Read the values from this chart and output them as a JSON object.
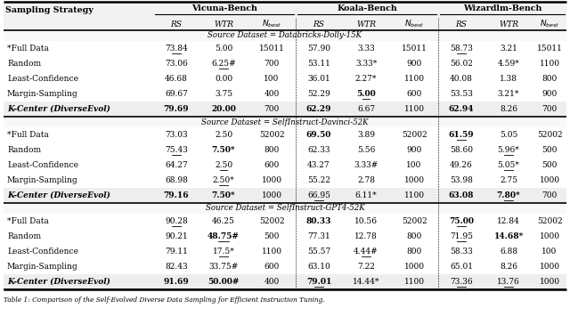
{
  "section_headers": [
    "Source Dataset = Databricks-Dolly-15K",
    "Source Dataset = SelfInstruct-Davinci-52K",
    "Source Dataset = SelfInstruct-GPT4-52K"
  ],
  "rows": [
    [
      [
        "*Full Data",
        "73.84",
        "5.00",
        "15011",
        "57.90",
        "3.33",
        "15011",
        "58.73",
        "3.21",
        "15011"
      ],
      [
        "Random",
        "73.06",
        "6.25#",
        "700",
        "53.11",
        "3.33*",
        "900",
        "56.02",
        "4.59*",
        "1100"
      ],
      [
        "Least-Confidence",
        "46.68",
        "0.00",
        "100",
        "36.01",
        "2.27*",
        "1100",
        "40.08",
        "1.38",
        "800"
      ],
      [
        "Margin-Sampling",
        "69.67",
        "3.75",
        "400",
        "52.29",
        "5.00",
        "600",
        "53.53",
        "3.21*",
        "900"
      ],
      [
        "K-Center (DiverseEvol)",
        "79.69",
        "20.00",
        "700",
        "62.29",
        "6.67",
        "1100",
        "62.94",
        "8.26",
        "700"
      ]
    ],
    [
      [
        "*Full Data",
        "73.03",
        "2.50",
        "52002",
        "69.50",
        "3.89",
        "52002",
        "61.59",
        "5.05",
        "52002"
      ],
      [
        "Random",
        "75.43",
        "7.50*",
        "800",
        "62.33",
        "5.56",
        "900",
        "58.60",
        "5.96*",
        "500"
      ],
      [
        "Least-Confidence",
        "64.27",
        "2.50",
        "600",
        "43.27",
        "3.33#",
        "100",
        "49.26",
        "5.05*",
        "500"
      ],
      [
        "Margin-Sampling",
        "68.98",
        "2.50*",
        "1000",
        "55.22",
        "2.78",
        "1000",
        "53.98",
        "2.75",
        "1000"
      ],
      [
        "K-Center (DiverseEvol)",
        "79.16",
        "7.50*",
        "1000",
        "66.95",
        "6.11*",
        "1100",
        "63.08",
        "7.80*",
        "700"
      ]
    ],
    [
      [
        "*Full Data",
        "90.28",
        "46.25",
        "52002",
        "80.33",
        "10.56",
        "52002",
        "75.00",
        "12.84",
        "52002"
      ],
      [
        "Random",
        "90.21",
        "48.75#",
        "500",
        "77.31",
        "12.78",
        "800",
        "71.95",
        "14.68*",
        "1000"
      ],
      [
        "Least-Confidence",
        "79.11",
        "17.5*",
        "1100",
        "55.57",
        "4.44#",
        "800",
        "58.33",
        "6.88",
        "100"
      ],
      [
        "Margin-Sampling",
        "82.43",
        "33.75#",
        "600",
        "63.10",
        "7.22",
        "1000",
        "65.01",
        "8.26",
        "1000"
      ],
      [
        "K-Center (DiverseEvol)",
        "91.69",
        "50.00#",
        "400",
        "79.01",
        "14.44*",
        "1100",
        "73.36",
        "13.76",
        "1000"
      ]
    ]
  ],
  "underline": {
    "0,0,1": true,
    "0,0,7": true,
    "0,1,2": true,
    "0,3,5": true,
    "1,0,7": true,
    "1,1,1": true,
    "1,1,8": true,
    "1,2,2": true,
    "1,2,8": true,
    "1,3,2": true,
    "1,4,4": true,
    "1,4,8": true,
    "2,0,1": true,
    "2,0,7": true,
    "2,1,2": true,
    "2,1,7": true,
    "2,2,2": true,
    "2,2,5": true,
    "2,4,4": true,
    "2,4,7": true,
    "2,4,8": true
  },
  "bold": {
    "0,3,5": true,
    "0,4,1": true,
    "0,4,2": true,
    "0,4,4": true,
    "0,4,7": true,
    "1,0,4": true,
    "1,0,7": true,
    "1,1,2": true,
    "1,4,1": true,
    "1,4,2": true,
    "1,4,7": true,
    "1,4,8": true,
    "2,0,4": true,
    "2,0,7": true,
    "2,1,2": true,
    "2,1,8": true,
    "2,4,1": true,
    "2,4,2": true,
    "2,4,4": true
  },
  "caption": "Table 1: Comparison of the Self-Evolved Diverse Data Sampling for Efficient Instruction Tuning."
}
